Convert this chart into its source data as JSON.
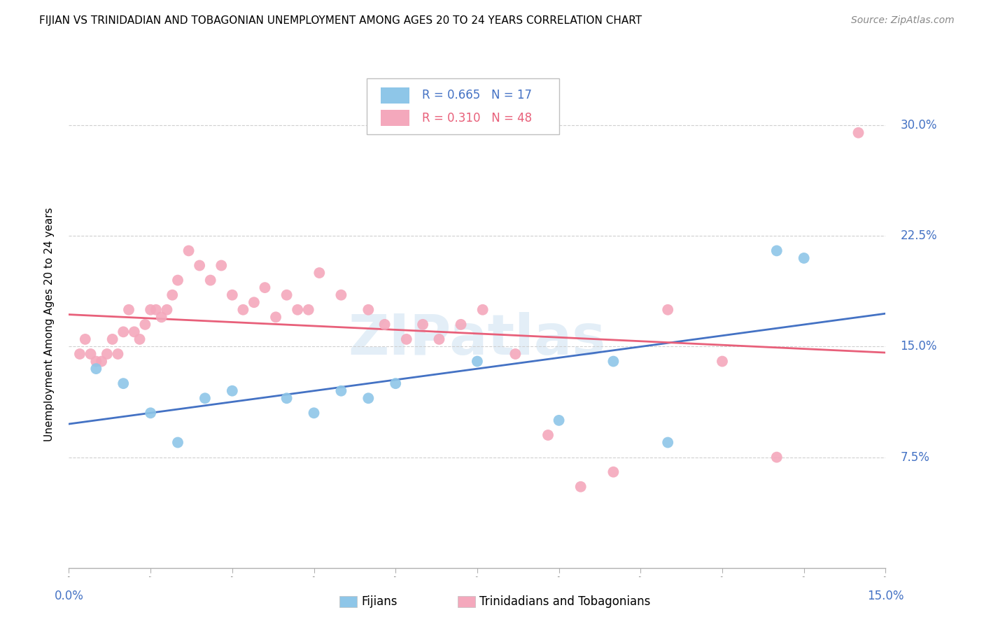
{
  "title": "FIJIAN VS TRINIDADIAN AND TOBAGONIAN UNEMPLOYMENT AMONG AGES 20 TO 24 YEARS CORRELATION CHART",
  "source": "Source: ZipAtlas.com",
  "ylabel": "Unemployment Among Ages 20 to 24 years",
  "ytick_labels": [
    "7.5%",
    "15.0%",
    "22.5%",
    "30.0%"
  ],
  "ytick_values": [
    0.075,
    0.15,
    0.225,
    0.3
  ],
  "xrange": [
    0.0,
    0.15
  ],
  "yrange": [
    0.0,
    0.33
  ],
  "legend_r1": "R = 0.665",
  "legend_n1": "N = 17",
  "legend_r2": "R = 0.310",
  "legend_n2": "N = 48",
  "color_fijian": "#8ec6e8",
  "color_trinidadian": "#f4a8bc",
  "color_fijian_line": "#4472C4",
  "color_trinidadian_line": "#e8607a",
  "color_axis_labels": "#4472C4",
  "fijian_x": [
    0.005,
    0.01,
    0.015,
    0.02,
    0.025,
    0.03,
    0.04,
    0.045,
    0.05,
    0.055,
    0.06,
    0.075,
    0.09,
    0.1,
    0.11,
    0.13,
    0.135
  ],
  "fijian_y": [
    0.135,
    0.125,
    0.105,
    0.085,
    0.115,
    0.12,
    0.115,
    0.105,
    0.12,
    0.115,
    0.125,
    0.14,
    0.1,
    0.14,
    0.085,
    0.215,
    0.21
  ],
  "trinidadian_x": [
    0.002,
    0.003,
    0.004,
    0.005,
    0.006,
    0.007,
    0.008,
    0.009,
    0.01,
    0.011,
    0.012,
    0.013,
    0.014,
    0.015,
    0.016,
    0.017,
    0.018,
    0.019,
    0.02,
    0.022,
    0.024,
    0.026,
    0.028,
    0.03,
    0.032,
    0.034,
    0.036,
    0.038,
    0.04,
    0.042,
    0.044,
    0.046,
    0.05,
    0.055,
    0.058,
    0.062,
    0.065,
    0.068,
    0.072,
    0.076,
    0.082,
    0.088,
    0.094,
    0.1,
    0.11,
    0.12,
    0.13,
    0.145
  ],
  "trinidadian_y": [
    0.145,
    0.155,
    0.145,
    0.14,
    0.14,
    0.145,
    0.155,
    0.145,
    0.16,
    0.175,
    0.16,
    0.155,
    0.165,
    0.175,
    0.175,
    0.17,
    0.175,
    0.185,
    0.195,
    0.215,
    0.205,
    0.195,
    0.205,
    0.185,
    0.175,
    0.18,
    0.19,
    0.17,
    0.185,
    0.175,
    0.175,
    0.2,
    0.185,
    0.175,
    0.165,
    0.155,
    0.165,
    0.155,
    0.165,
    0.175,
    0.145,
    0.09,
    0.055,
    0.065,
    0.175,
    0.14,
    0.075,
    0.295
  ]
}
